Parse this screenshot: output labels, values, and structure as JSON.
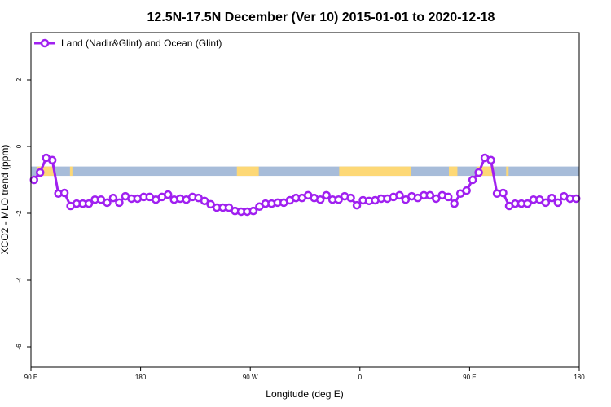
{
  "chart_data": {
    "type": "line",
    "title": "12.5N-17.5N December (Ver 10)   2015-01-01 to 2020-12-18",
    "xlabel": "Longitude (deg E)",
    "ylabel": "XCO2 - MLO trend (ppm)",
    "xlim": [
      90,
      540
    ],
    "ylim": [
      -6.6,
      3.45
    ],
    "x_ticks": [
      {
        "value": 90,
        "label": "90 E"
      },
      {
        "value": 180,
        "label": "180"
      },
      {
        "value": 270,
        "label": "90 W"
      },
      {
        "value": 360,
        "label": "0"
      },
      {
        "value": 450,
        "label": "90 E"
      },
      {
        "value": 540,
        "label": "180"
      }
    ],
    "y_ticks": [
      {
        "value": 2,
        "label": "2"
      },
      {
        "value": 0,
        "label": "0"
      },
      {
        "value": -2,
        "label": "-2"
      },
      {
        "value": -4,
        "label": "-4"
      },
      {
        "value": -6,
        "label": "-6"
      }
    ],
    "grid": false,
    "legend_position": "top-left",
    "series": [
      {
        "name": "Land (Nadir&Glint) and Ocean (Glint)",
        "color": "#a020f0",
        "x_start": 92.5,
        "x_step": 5,
        "values": [
          -1.0,
          -0.78,
          -0.34,
          -0.41,
          -1.41,
          -1.39,
          -1.78,
          -1.71,
          -1.71,
          -1.71,
          -1.59,
          -1.59,
          -1.68,
          -1.54,
          -1.68,
          -1.49,
          -1.56,
          -1.56,
          -1.51,
          -1.51,
          -1.59,
          -1.51,
          -1.44,
          -1.59,
          -1.56,
          -1.59,
          -1.51,
          -1.54,
          -1.63,
          -1.73,
          -1.83,
          -1.83,
          -1.83,
          -1.93,
          -1.95,
          -1.95,
          -1.93,
          -1.8,
          -1.71,
          -1.71,
          -1.68,
          -1.68,
          -1.61,
          -1.54,
          -1.54,
          -1.46,
          -1.54,
          -1.59,
          -1.46,
          -1.59,
          -1.59,
          -1.49,
          -1.54,
          -1.76,
          -1.61,
          -1.63,
          -1.61,
          -1.56,
          -1.56,
          -1.51,
          -1.46,
          -1.59,
          -1.49,
          -1.54,
          -1.46,
          -1.46,
          -1.56,
          -1.46,
          -1.51,
          -1.71,
          -1.41,
          -1.32,
          -1.0,
          -0.78,
          -0.34,
          -0.41,
          -1.41,
          -1.39,
          -1.78,
          -1.71,
          -1.71,
          -1.71,
          -1.59,
          -1.59,
          -1.68,
          -1.54,
          -1.68,
          -1.49,
          -1.56,
          -1.56
        ]
      }
    ],
    "surface_strip": {
      "y_range": [
        -0.88,
        -0.6
      ],
      "ocean_color": "#a7bcd9",
      "land_color": "#fdd876",
      "land_ranges": [
        [
          95,
          110
        ],
        [
          122,
          124
        ],
        [
          259,
          277
        ],
        [
          343,
          402
        ],
        [
          433,
          440
        ],
        [
          456,
          470
        ],
        [
          480,
          482
        ]
      ]
    }
  }
}
